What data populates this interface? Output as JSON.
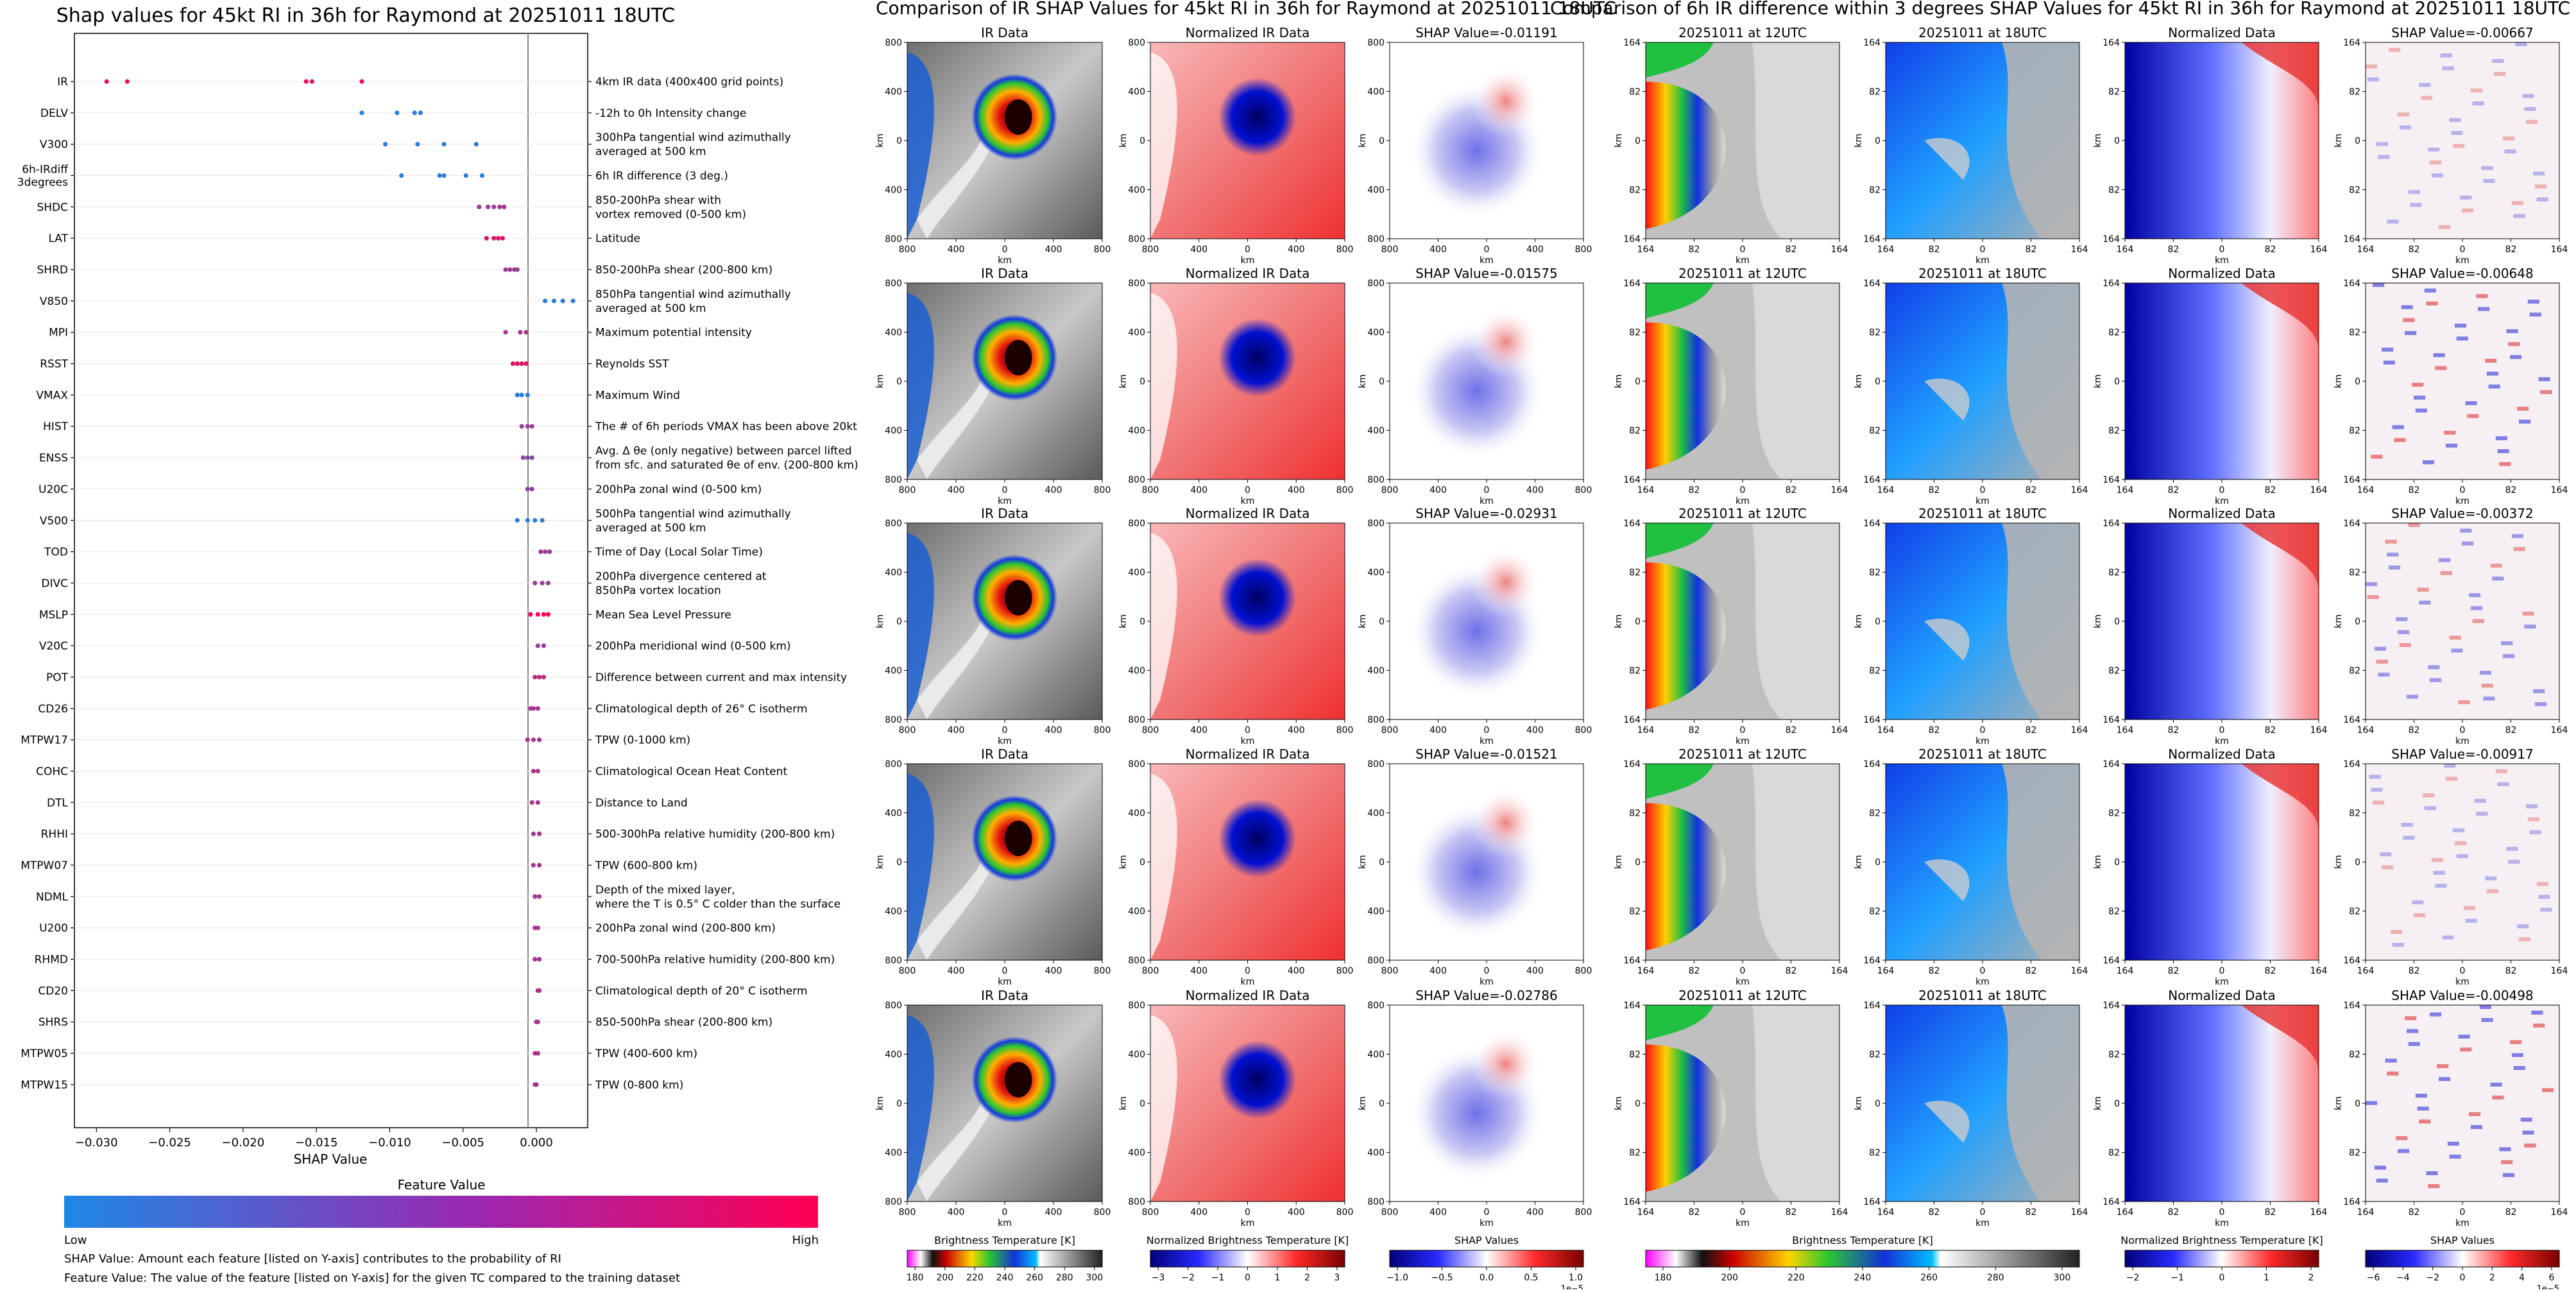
{
  "beeswarm": {
    "title": "Shap values for 45kt RI in 36h for Raymond at 20251011 18UTC",
    "xlabel": "SHAP Value",
    "colorbar_title": "Feature Value",
    "low_label": "Low",
    "high_label": "High",
    "note1": "SHAP Value: Amount each feature [listed on Y-axis] contributes to the probability of RI",
    "note2": "Feature Value: The value of the feature [listed on Y-axis] for the given TC compared to the training dataset"
  },
  "panel1": {
    "title": "Comparison of IR SHAP Values for 45kt RI in 36h for Raymond at 20251011 18UTC",
    "col_titles": [
      "IR Data",
      "Normalized IR Data"
    ],
    "shap_titles": [
      "SHAP Value=-0.01191",
      "SHAP Value=-0.01575",
      "SHAP Value=-0.02931",
      "SHAP Value=-0.01521",
      "SHAP Value=-0.02786"
    ],
    "ticks": [
      "800",
      "400",
      "0",
      "400",
      "800"
    ],
    "axis_label": "km",
    "cbar_labels": [
      "Brightness Temperature [K]",
      "Normalized Brightness Temperature [K]",
      "SHAP Values"
    ],
    "cbar1_ticks": [
      "180",
      "200",
      "220",
      "240",
      "260",
      "280",
      "300"
    ],
    "cbar2_ticks": [
      "−3",
      "−2",
      "−1",
      "0",
      "1",
      "2",
      "3"
    ],
    "cbar3_ticks": [
      "−1.0",
      "−0.5",
      "0.0",
      "0.5",
      "1.0"
    ],
    "cbar3_exp": "1e−5"
  },
  "panel2": {
    "title": "Comparison of 6h IR difference within 3 degrees SHAP Values for 45kt RI in 36h for Raymond at 20251011 18UTC",
    "col_titles": [
      "20251011 at 12UTC",
      "20251011 at 18UTC",
      "Normalized Data"
    ],
    "shap_titles": [
      "SHAP Value=-0.00667",
      "SHAP Value=-0.00648",
      "SHAP Value=-0.00372",
      "SHAP Value=-0.00917",
      "SHAP Value=-0.00498"
    ],
    "ticks": [
      "164",
      "82",
      "0",
      "82",
      "164"
    ],
    "axis_label": "km",
    "cbar_labels": [
      "Brightness Temperature [K]",
      "Normalized Brightness Temperature [K]",
      "SHAP Values"
    ],
    "cbar1_ticks": [
      "180",
      "200",
      "220",
      "240",
      "260",
      "280",
      "300"
    ],
    "cbar2_ticks": [
      "−2",
      "−1",
      "0",
      "1",
      "2"
    ],
    "cbar3_ticks": [
      "−6",
      "−4",
      "−2",
      "0",
      "2",
      "4",
      "6"
    ],
    "cbar3_exp": "1e−5"
  },
  "colors": {
    "low": "#1e88e5",
    "high": "#ff0052",
    "blue": "#0000c8",
    "red": "#e8141e"
  },
  "chart_data": {
    "type": "scatter",
    "title": "Shap values for 45kt RI in 36h for Raymond at 20251011 18UTC",
    "xlabel": "SHAP Value",
    "xlim": [
      -0.0315,
      0.0035
    ],
    "xticks": [
      -0.03,
      -0.025,
      -0.02,
      -0.015,
      -0.01,
      -0.005,
      0.0
    ],
    "xtick_labels": [
      "−0.030",
      "−0.025",
      "−0.020",
      "−0.015",
      "−0.010",
      "−0.005",
      "0.000"
    ],
    "features": [
      {
        "name": "IR",
        "desc": "4km IR data (400x400 grid points)",
        "values": [
          -0.0293,
          -0.0279,
          -0.0157,
          -0.0153,
          -0.0119
        ],
        "fv": [
          0.92,
          0.92,
          0.92,
          0.92,
          0.92
        ]
      },
      {
        "name": "DELV",
        "desc": "-12h to 0h Intensity change",
        "values": [
          -0.0119,
          -0.0095,
          -0.0083,
          -0.0079
        ],
        "fv": [
          0.08,
          0.08,
          0.08,
          0.08
        ]
      },
      {
        "name": "V300",
        "desc": "300hPa tangential wind azimuthally\naveraged at 500 km",
        "values": [
          -0.0103,
          -0.0081,
          -0.0063,
          -0.0041
        ],
        "fv": [
          0.08,
          0.08,
          0.08,
          0.08
        ]
      },
      {
        "name": "6h-IRdiff\n3degrees",
        "desc": "6h IR difference (3 deg.)",
        "values": [
          -0.0092,
          -0.0066,
          -0.0063,
          -0.0048,
          -0.0037
        ],
        "fv": [
          0.08,
          0.08,
          0.08,
          0.08,
          0.08
        ]
      },
      {
        "name": "SHDC",
        "desc": "850-200hPa shear with\nvortex removed (0-500 km)",
        "values": [
          -0.0039,
          -0.0033,
          -0.0029,
          -0.0025,
          -0.0022
        ],
        "fv": [
          0.55,
          0.55,
          0.55,
          0.6,
          0.6
        ]
      },
      {
        "name": "LAT",
        "desc": "Latitude",
        "values": [
          -0.0034,
          -0.0029,
          -0.0026,
          -0.0023
        ],
        "fv": [
          0.85,
          0.85,
          0.85,
          0.85
        ]
      },
      {
        "name": "SHRD",
        "desc": "850-200hPa shear (200-800 km)",
        "values": [
          -0.0021,
          -0.0018,
          -0.0015,
          -0.0013
        ],
        "fv": [
          0.55,
          0.55,
          0.55,
          0.55
        ]
      },
      {
        "name": "V850",
        "desc": "850hPa tangential wind azimuthally\naveraged at 500 km",
        "values": [
          0.0006,
          0.0012,
          0.0018,
          0.0025
        ],
        "fv": [
          0.08,
          0.08,
          0.08,
          0.08
        ]
      },
      {
        "name": "MPI",
        "desc": "Maximum potential intensity",
        "values": [
          -0.0021,
          -0.0011,
          -0.0007
        ],
        "fv": [
          0.6,
          0.6,
          0.6
        ]
      },
      {
        "name": "RSST",
        "desc": "Reynolds SST",
        "values": [
          -0.0016,
          -0.0013,
          -0.001,
          -0.0007
        ],
        "fv": [
          0.85,
          0.85,
          0.85,
          0.85
        ]
      },
      {
        "name": "VMAX",
        "desc": "Maximum Wind",
        "values": [
          -0.0013,
          -0.001,
          -0.0006
        ],
        "fv": [
          0.08,
          0.08,
          0.08
        ]
      },
      {
        "name": "HIST",
        "desc": "The # of 6h periods VMAX has been above 20kt",
        "values": [
          -0.001,
          -0.0006,
          -0.0003
        ],
        "fv": [
          0.55,
          0.55,
          0.55
        ]
      },
      {
        "name": "ENSS",
        "desc": "Avg. Δ θe (only negative) between parcel lifted\nfrom sfc. and saturated θe of env. (200-800 km)",
        "values": [
          -0.0009,
          -0.0006,
          -0.0003
        ],
        "fv": [
          0.45,
          0.45,
          0.45
        ]
      },
      {
        "name": "U20C",
        "desc": "200hPa zonal wind (0-500 km)",
        "values": [
          -0.0006,
          -0.0003
        ],
        "fv": [
          0.5,
          0.5
        ]
      },
      {
        "name": "V500",
        "desc": "500hPa tangential wind azimuthally\naveraged at 500 km",
        "values": [
          -0.0013,
          -0.0006,
          -0.0001,
          0.0004
        ],
        "fv": [
          0.08,
          0.08,
          0.08,
          0.08
        ]
      },
      {
        "name": "TOD",
        "desc": "Time of Day (Local Solar Time)",
        "values": [
          0.0003,
          0.0006,
          0.0009
        ],
        "fv": [
          0.55,
          0.55,
          0.55
        ]
      },
      {
        "name": "DIVC",
        "desc": "200hPa divergence centered at\n850hPa vortex location",
        "values": [
          -0.0001,
          0.0004,
          0.0008
        ],
        "fv": [
          0.55,
          0.55,
          0.55
        ]
      },
      {
        "name": "MSLP",
        "desc": "Mean Sea Level Pressure",
        "values": [
          -0.0004,
          0.0001,
          0.0005,
          0.0008
        ],
        "fv": [
          0.95,
          0.95,
          0.95,
          0.95
        ]
      },
      {
        "name": "V20C",
        "desc": "200hPa meridional wind (0-500 km)",
        "values": [
          0.0001,
          0.0005
        ],
        "fv": [
          0.55,
          0.55
        ]
      },
      {
        "name": "POT",
        "desc": "Difference between current and max intensity",
        "values": [
          -0.0001,
          0.0002,
          0.0005
        ],
        "fv": [
          0.7,
          0.7,
          0.7
        ]
      },
      {
        "name": "CD26",
        "desc": "Climatological depth of 26° C isotherm",
        "values": [
          -0.0004,
          -0.0002,
          0.0001
        ],
        "fv": [
          0.6,
          0.6,
          0.6
        ]
      },
      {
        "name": "MTPW17",
        "desc": "TPW (0-1000 km)",
        "values": [
          -0.0006,
          -0.0002,
          0.0002
        ],
        "fv": [
          0.6,
          0.6,
          0.6
        ]
      },
      {
        "name": "COHC",
        "desc": "Climatological Ocean Heat Content",
        "values": [
          -0.0002,
          0.0001
        ],
        "fv": [
          0.6,
          0.6
        ]
      },
      {
        "name": "DTL",
        "desc": "Distance to Land",
        "values": [
          -0.0003,
          0.0001
        ],
        "fv": [
          0.6,
          0.6
        ]
      },
      {
        "name": "RHHI",
        "desc": "500-300hPa relative humidity (200-800 km)",
        "values": [
          -0.0002,
          0.0002
        ],
        "fv": [
          0.6,
          0.6
        ]
      },
      {
        "name": "MTPW07",
        "desc": "TPW (600-800 km)",
        "values": [
          -0.0002,
          0.0002
        ],
        "fv": [
          0.6,
          0.6
        ]
      },
      {
        "name": "NDML",
        "desc": "Depth of the mixed layer,\nwhere the T is 0.5° C colder than the surface",
        "values": [
          -0.0001,
          0.0002
        ],
        "fv": [
          0.6,
          0.6
        ]
      },
      {
        "name": "U200",
        "desc": "200hPa zonal wind (200-800 km)",
        "values": [
          -0.0001,
          0.0001
        ],
        "fv": [
          0.6,
          0.6
        ]
      },
      {
        "name": "RHMD",
        "desc": "700-500hPa relative humidity (200-800 km)",
        "values": [
          -0.0001,
          0.0002
        ],
        "fv": [
          0.6,
          0.6
        ]
      },
      {
        "name": "CD20",
        "desc": "Climatological depth of 20° C isotherm",
        "values": [
          0.0001,
          0.0002
        ],
        "fv": [
          0.6,
          0.6
        ]
      },
      {
        "name": "SHRS",
        "desc": "850-500hPa shear (200-800 km)",
        "values": [
          0.0,
          0.0001
        ],
        "fv": [
          0.6,
          0.6
        ]
      },
      {
        "name": "MTPW05",
        "desc": "TPW (400-600 km)",
        "values": [
          -0.0001,
          0.0001
        ],
        "fv": [
          0.6,
          0.6
        ]
      },
      {
        "name": "MTPW15",
        "desc": "TPW (0-800 km)",
        "values": [
          -0.0001,
          0.0
        ],
        "fv": [
          0.6,
          0.6
        ]
      }
    ]
  }
}
